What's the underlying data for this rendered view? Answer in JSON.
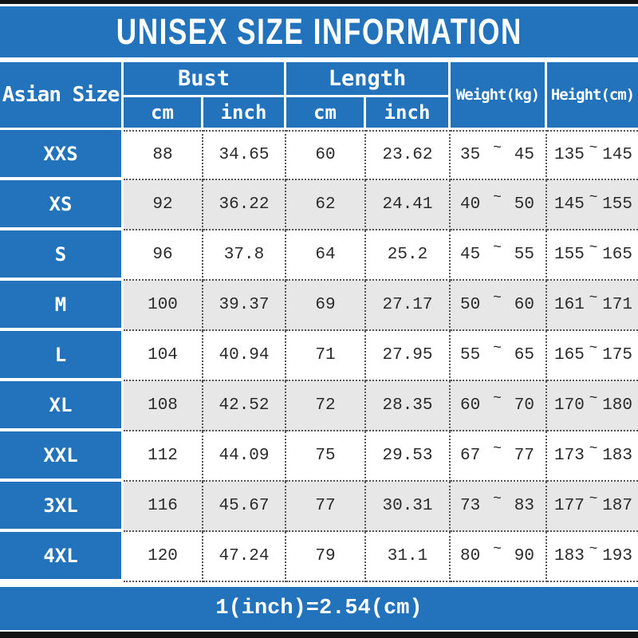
{
  "title": "UNISEX SIZE INFORMATION",
  "footer_note": "1(inch)=2.54(cm)",
  "symbols": {
    "tilde": "~"
  },
  "colors": {
    "primary_blue": "#2272bc",
    "row_alt_gray": "#e8e7e7",
    "frame_black": "#141414",
    "grid_dot_gray": "#555555",
    "text_dark": "#2b2b2b",
    "text_white": "#ffffff"
  },
  "headers": {
    "asian_size": "Asian Size",
    "bust": "Bust",
    "length": "Length",
    "weight": "Weight(kg)",
    "height": "Height(cm)",
    "unit_cm": "cm",
    "unit_inch": "inch"
  },
  "rows": [
    {
      "size": "XXS",
      "bust_cm": "88",
      "bust_inch": "34.65",
      "len_cm": "60",
      "len_inch": "23.62",
      "w_min": "35",
      "w_max": "45",
      "h_min": "135",
      "h_max": "145"
    },
    {
      "size": "XS",
      "bust_cm": "92",
      "bust_inch": "36.22",
      "len_cm": "62",
      "len_inch": "24.41",
      "w_min": "40",
      "w_max": "50",
      "h_min": "145",
      "h_max": "155"
    },
    {
      "size": "S",
      "bust_cm": "96",
      "bust_inch": "37.8",
      "len_cm": "64",
      "len_inch": "25.2",
      "w_min": "45",
      "w_max": "55",
      "h_min": "155",
      "h_max": "165"
    },
    {
      "size": "M",
      "bust_cm": "100",
      "bust_inch": "39.37",
      "len_cm": "69",
      "len_inch": "27.17",
      "w_min": "50",
      "w_max": "60",
      "h_min": "161",
      "h_max": "171"
    },
    {
      "size": "L",
      "bust_cm": "104",
      "bust_inch": "40.94",
      "len_cm": "71",
      "len_inch": "27.95",
      "w_min": "55",
      "w_max": "65",
      "h_min": "165",
      "h_max": "175"
    },
    {
      "size": "XL",
      "bust_cm": "108",
      "bust_inch": "42.52",
      "len_cm": "72",
      "len_inch": "28.35",
      "w_min": "60",
      "w_max": "70",
      "h_min": "170",
      "h_max": "180"
    },
    {
      "size": "XXL",
      "bust_cm": "112",
      "bust_inch": "44.09",
      "len_cm": "75",
      "len_inch": "29.53",
      "w_min": "67",
      "w_max": "77",
      "h_min": "173",
      "h_max": "183"
    },
    {
      "size": "3XL",
      "bust_cm": "116",
      "bust_inch": "45.67",
      "len_cm": "77",
      "len_inch": "30.31",
      "w_min": "73",
      "w_max": "83",
      "h_min": "177",
      "h_max": "187"
    },
    {
      "size": "4XL",
      "bust_cm": "120",
      "bust_inch": "47.24",
      "len_cm": "79",
      "len_inch": "31.1",
      "w_min": "80",
      "w_max": "90",
      "h_min": "183",
      "h_max": "193"
    }
  ],
  "chart_data": {
    "type": "table",
    "title": "UNISEX SIZE INFORMATION",
    "columns": [
      "Asian Size",
      "Bust cm",
      "Bust inch",
      "Length cm",
      "Length inch",
      "Weight(kg)",
      "Height(cm)"
    ],
    "rows": [
      [
        "XXS",
        88,
        34.65,
        60,
        23.62,
        "35~45",
        "135~145"
      ],
      [
        "XS",
        92,
        36.22,
        62,
        24.41,
        "40~50",
        "145~155"
      ],
      [
        "S",
        96,
        37.8,
        64,
        25.2,
        "45~55",
        "155~165"
      ],
      [
        "M",
        100,
        39.37,
        69,
        27.17,
        "50~60",
        "161~171"
      ],
      [
        "L",
        104,
        40.94,
        71,
        27.95,
        "55~65",
        "165~175"
      ],
      [
        "XL",
        108,
        42.52,
        72,
        28.35,
        "60~70",
        "170~180"
      ],
      [
        "XXL",
        112,
        44.09,
        75,
        29.53,
        "67~77",
        "173~183"
      ],
      [
        "3XL",
        116,
        45.67,
        77,
        30.31,
        "73~83",
        "177~187"
      ],
      [
        "4XL",
        120,
        47.24,
        79,
        31.1,
        "80~90",
        "183~193"
      ]
    ],
    "note": "1(inch)=2.54(cm)"
  }
}
